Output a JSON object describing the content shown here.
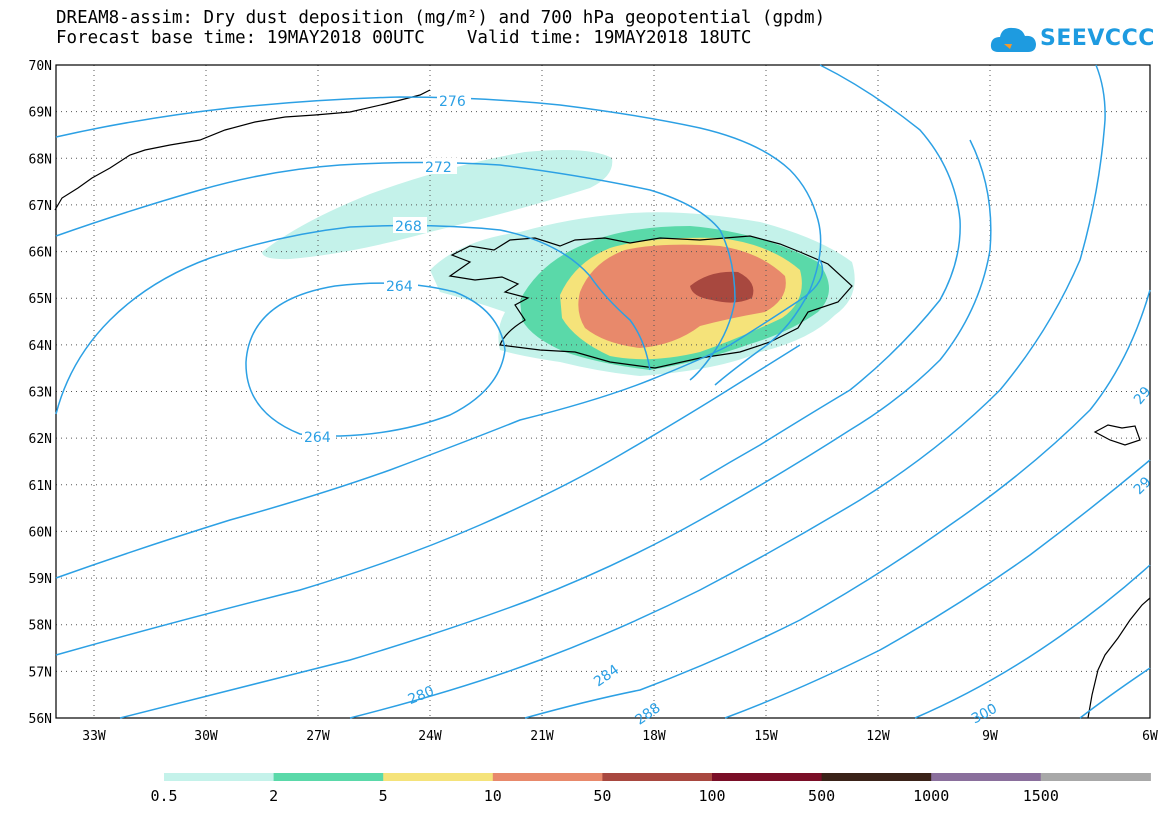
{
  "title": {
    "line1": "DREAM8-assim: Dry dust deposition (mg/m²) and 700 hPa geopotential (gpdm)",
    "line2": "Forecast base time: 19MAY2018 00UTC    Valid time: 19MAY2018 18UTC"
  },
  "logo": {
    "text": "SEEVCCC",
    "icon": "cloud-icon",
    "color": "#1e9be0"
  },
  "map": {
    "lat_labels": [
      "70N",
      "69N",
      "68N",
      "67N",
      "66N",
      "65N",
      "64N",
      "63N",
      "62N",
      "61N",
      "60N",
      "59N",
      "58N",
      "57N",
      "56N"
    ],
    "lon_labels": [
      "33W",
      "30W",
      "27W",
      "24W",
      "21W",
      "18W",
      "15W",
      "12W",
      "9W",
      "6W"
    ],
    "contour_color": "#2ca0e4",
    "contour_labels": [
      "276",
      "272",
      "268",
      "264",
      "264",
      "280",
      "284",
      "288",
      "300",
      "29",
      "29"
    ]
  },
  "legend": {
    "colors": [
      "#c4f2ea",
      "#5ad9a9",
      "#f5e37a",
      "#e8896b",
      "#a8483f",
      "#7a0e27",
      "#3a2218",
      "#8a6f9c",
      "#a8a8a8"
    ],
    "labels": [
      "0.5",
      "2",
      "5",
      "10",
      "50",
      "100",
      "500",
      "1000",
      "1500"
    ]
  }
}
